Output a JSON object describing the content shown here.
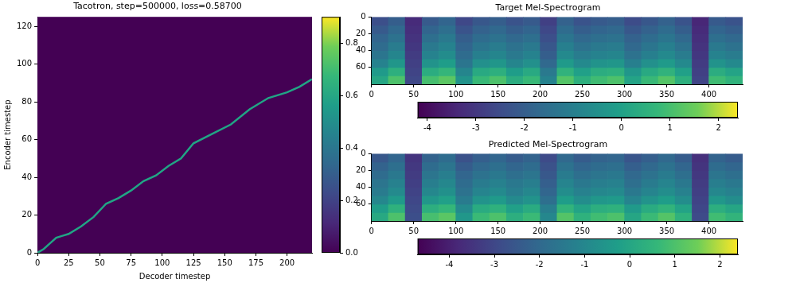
{
  "chart_data": [
    {
      "type": "line",
      "title": "Tacotron, step=500000, loss=0.58700",
      "x_label": "Decoder timestep",
      "y_label": "Encoder timestep",
      "x": [
        0,
        5,
        10,
        15,
        20,
        25,
        35,
        45,
        55,
        65,
        75,
        85,
        95,
        105,
        115,
        125,
        140,
        155,
        170,
        185,
        200,
        210,
        220
      ],
      "series": [
        {
          "color": "#21a585",
          "values": [
            0,
            2,
            5,
            8,
            9,
            10,
            14,
            19,
            26,
            29,
            33,
            38,
            41,
            46,
            50,
            58,
            63,
            68,
            76,
            82,
            85,
            88,
            92
          ]
        }
      ],
      "xlim": [
        0,
        220
      ],
      "ylim": [
        0,
        125
      ],
      "xticks": [
        0,
        25,
        50,
        75,
        100,
        125,
        150,
        175,
        200
      ],
      "yticks": [
        0,
        20,
        40,
        60,
        80,
        100,
        120
      ],
      "grid": false,
      "colorbar": {
        "range": [
          0,
          0.9
        ],
        "ticks": [
          {
            "value": 0,
            "label": "0.0"
          },
          0.2,
          0.4,
          0.6,
          0.8
        ]
      }
    },
    {
      "type": "heatmap",
      "title": "Target Mel-Spectrogram",
      "cells": [
        [
          -2.4,
          -2.0,
          -3.3,
          -2.1,
          -1.8,
          -2.6,
          -2.2,
          -2.0,
          -2.3,
          -2.1,
          -2.8,
          -1.9,
          -2.3,
          -2.1,
          -2.0,
          -2.5,
          -2.2,
          -1.9,
          -2.3,
          -3.4,
          -2.1,
          -2.3
        ],
        [
          -2.1,
          -1.7,
          -3.2,
          -1.8,
          -1.5,
          -2.3,
          -1.9,
          -1.7,
          -2.0,
          -1.8,
          -2.6,
          -1.6,
          -2.0,
          -1.8,
          -1.7,
          -2.2,
          -1.9,
          -1.6,
          -2.0,
          -3.3,
          -1.8,
          -2.0
        ],
        [
          -1.8,
          -1.4,
          -3.1,
          -1.5,
          -1.2,
          -2.0,
          -1.6,
          -1.4,
          -1.7,
          -1.5,
          -2.4,
          -1.3,
          -1.7,
          -1.5,
          -1.4,
          -1.9,
          -1.6,
          -1.3,
          -1.7,
          -3.2,
          -1.5,
          -1.7
        ],
        [
          -1.6,
          -1.1,
          -3.0,
          -1.2,
          -0.9,
          -1.8,
          -1.3,
          -1.1,
          -1.4,
          -1.2,
          -2.2,
          -1.0,
          -1.4,
          -1.2,
          -1.1,
          -1.7,
          -1.3,
          -1.0,
          -1.4,
          -3.1,
          -1.2,
          -1.4
        ],
        [
          -1.3,
          -0.8,
          -2.9,
          -0.9,
          -0.6,
          -1.6,
          -1.0,
          -0.8,
          -1.2,
          -0.9,
          -2.0,
          -0.7,
          -1.1,
          -0.9,
          -0.8,
          -1.4,
          -1.0,
          -0.7,
          -1.1,
          -3.0,
          -0.9,
          -1.1
        ],
        [
          -0.9,
          -0.3,
          -2.8,
          -0.4,
          -0.1,
          -1.3,
          -0.5,
          -0.3,
          -0.8,
          -0.5,
          -1.7,
          -0.2,
          -0.7,
          -0.4,
          -0.3,
          -1.0,
          -0.5,
          -0.2,
          -0.7,
          -2.9,
          -0.4,
          -0.7
        ],
        [
          -0.2,
          0.5,
          -2.7,
          0.4,
          0.7,
          -0.8,
          0.3,
          0.5,
          -0.1,
          0.3,
          -1.2,
          0.6,
          0.0,
          0.4,
          0.5,
          -0.3,
          0.3,
          0.6,
          0.0,
          -2.8,
          0.4,
          0.1
        ],
        [
          0.2,
          1.1,
          -2.6,
          1.0,
          1.3,
          -0.4,
          0.8,
          1.1,
          0.4,
          0.8,
          -0.9,
          1.2,
          0.5,
          0.9,
          1.1,
          0.1,
          0.8,
          1.2,
          0.5,
          -2.7,
          0.9,
          0.6
        ]
      ],
      "xlim": [
        0,
        440
      ],
      "ylim": [
        0,
        80
      ],
      "xticks": [
        0,
        50,
        100,
        150,
        200,
        250,
        300,
        350,
        400
      ],
      "yticks": [
        0,
        20,
        40,
        60
      ],
      "grid": false,
      "colorbar": {
        "range": [
          -4.2,
          2.4
        ],
        "ticks": [
          -4,
          -3,
          -2,
          -1,
          0,
          1,
          2
        ]
      }
    },
    {
      "type": "heatmap",
      "title": "Predicted Mel-Spectrogram",
      "cells": [
        [
          -2.5,
          -2.1,
          -3.5,
          -2.2,
          -1.9,
          -2.7,
          -2.3,
          -2.1,
          -2.4,
          -2.2,
          -2.9,
          -2.0,
          -2.4,
          -2.2,
          -2.1,
          -2.6,
          -2.3,
          -2.0,
          -2.4,
          -3.6,
          -2.2,
          -2.4
        ],
        [
          -2.2,
          -1.8,
          -3.4,
          -1.9,
          -1.6,
          -2.4,
          -2.0,
          -1.8,
          -2.1,
          -1.9,
          -2.7,
          -1.7,
          -2.1,
          -1.9,
          -1.8,
          -2.3,
          -2.0,
          -1.7,
          -2.1,
          -3.5,
          -1.9,
          -2.1
        ],
        [
          -1.9,
          -1.5,
          -3.3,
          -1.6,
          -1.3,
          -2.1,
          -1.7,
          -1.5,
          -1.8,
          -1.6,
          -2.5,
          -1.4,
          -1.8,
          -1.6,
          -1.5,
          -2.0,
          -1.7,
          -1.4,
          -1.8,
          -3.4,
          -1.6,
          -1.8
        ],
        [
          -1.6,
          -1.2,
          -3.2,
          -1.3,
          -1.0,
          -1.9,
          -1.4,
          -1.2,
          -1.5,
          -1.3,
          -2.3,
          -1.1,
          -1.5,
          -1.3,
          -1.2,
          -1.8,
          -1.4,
          -1.1,
          -1.5,
          -3.3,
          -1.3,
          -1.5
        ],
        [
          -1.4,
          -0.9,
          -3.1,
          -1.0,
          -0.7,
          -1.7,
          -1.1,
          -0.9,
          -1.3,
          -1.0,
          -2.1,
          -0.8,
          -1.2,
          -1.0,
          -0.9,
          -1.5,
          -1.1,
          -0.8,
          -1.2,
          -3.2,
          -1.0,
          -1.2
        ],
        [
          -1.0,
          -0.4,
          -3.0,
          -0.5,
          -0.2,
          -1.4,
          -0.6,
          -0.4,
          -0.9,
          -0.6,
          -1.8,
          -0.3,
          -0.8,
          -0.5,
          -0.4,
          -1.1,
          -0.6,
          -0.3,
          -0.8,
          -3.1,
          -0.5,
          -0.8
        ],
        [
          -0.3,
          0.4,
          -2.9,
          0.3,
          0.6,
          -0.9,
          0.2,
          0.4,
          -0.2,
          0.2,
          -1.3,
          0.5,
          -0.1,
          0.3,
          0.4,
          -0.4,
          0.2,
          0.5,
          -0.1,
          -3.0,
          0.3,
          0.0
        ],
        [
          0.1,
          1.0,
          -2.8,
          0.9,
          1.2,
          -0.5,
          0.7,
          1.0,
          0.3,
          0.7,
          -1.0,
          1.1,
          0.4,
          0.8,
          1.0,
          0.0,
          0.7,
          1.1,
          0.4,
          -2.9,
          0.8,
          0.5
        ]
      ],
      "xlim": [
        0,
        440
      ],
      "ylim": [
        0,
        80
      ],
      "xticks": [
        0,
        50,
        100,
        150,
        200,
        250,
        300,
        350,
        400
      ],
      "yticks": [
        0,
        20,
        40,
        60
      ],
      "grid": false,
      "colorbar": {
        "range": [
          -4.7,
          2.4
        ],
        "ticks": [
          -4,
          -3,
          -2,
          -1,
          0,
          1,
          2
        ]
      }
    }
  ]
}
